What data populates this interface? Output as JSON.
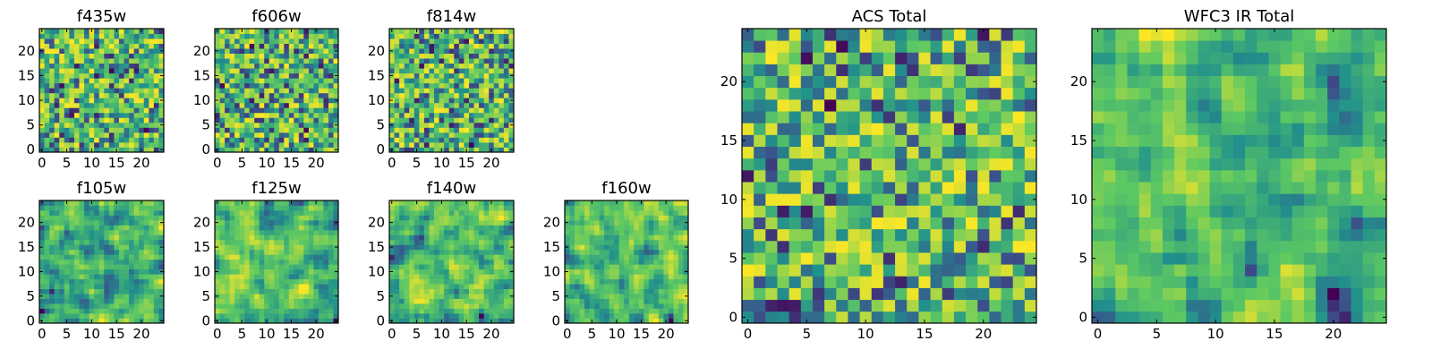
{
  "figure": {
    "colormap": "viridis",
    "colormap_stops": [
      "#440154",
      "#3b528b",
      "#21918c",
      "#5ec962",
      "#fde725"
    ],
    "axis_color": "#000000"
  },
  "chart_data": [
    {
      "type": "heatmap",
      "title": "f435w",
      "grid_size": 25,
      "xlim": [
        0,
        24
      ],
      "ylim": [
        0,
        24
      ],
      "xticks": [
        "0",
        "5",
        "10",
        "15",
        "20"
      ],
      "yticks": [
        "0",
        "5",
        "10",
        "15",
        "20"
      ],
      "seed": 11,
      "smooth": 0
    },
    {
      "type": "heatmap",
      "title": "f606w",
      "grid_size": 25,
      "xlim": [
        0,
        24
      ],
      "ylim": [
        0,
        24
      ],
      "xticks": [
        "0",
        "5",
        "10",
        "15",
        "20"
      ],
      "yticks": [
        "0",
        "5",
        "10",
        "15",
        "20"
      ],
      "seed": 23,
      "smooth": 0
    },
    {
      "type": "heatmap",
      "title": "f814w",
      "grid_size": 25,
      "xlim": [
        0,
        24
      ],
      "ylim": [
        0,
        24
      ],
      "xticks": [
        "0",
        "5",
        "10",
        "15",
        "20"
      ],
      "yticks": [
        "0",
        "5",
        "10",
        "15",
        "20"
      ],
      "seed": 37,
      "smooth": 0
    },
    {
      "type": "heatmap",
      "title": "f105w",
      "grid_size": 25,
      "xlim": [
        0,
        24
      ],
      "ylim": [
        0,
        24
      ],
      "xticks": [
        "0",
        "5",
        "10",
        "15",
        "20"
      ],
      "yticks": [
        "0",
        "5",
        "10",
        "15",
        "20"
      ],
      "seed": 41,
      "smooth": 1
    },
    {
      "type": "heatmap",
      "title": "f125w",
      "grid_size": 25,
      "xlim": [
        0,
        24
      ],
      "ylim": [
        0,
        24
      ],
      "xticks": [
        "0",
        "5",
        "10",
        "15",
        "20"
      ],
      "yticks": [
        "0",
        "5",
        "10",
        "15",
        "20"
      ],
      "seed": 53,
      "smooth": 1
    },
    {
      "type": "heatmap",
      "title": "f140w",
      "grid_size": 25,
      "xlim": [
        0,
        24
      ],
      "ylim": [
        0,
        24
      ],
      "xticks": [
        "0",
        "5",
        "10",
        "15",
        "20"
      ],
      "yticks": [
        "0",
        "5",
        "10",
        "15",
        "20"
      ],
      "seed": 67,
      "smooth": 1
    },
    {
      "type": "heatmap",
      "title": "f160w",
      "grid_size": 25,
      "xlim": [
        0,
        24
      ],
      "ylim": [
        0,
        24
      ],
      "xticks": [
        "0",
        "5",
        "10",
        "15",
        "20"
      ],
      "yticks": [
        "0",
        "5",
        "10",
        "15",
        "20"
      ],
      "seed": 79,
      "smooth": 1
    },
    {
      "type": "heatmap",
      "title": "ACS Total",
      "grid_size": 25,
      "xlim": [
        0,
        24
      ],
      "ylim": [
        0,
        24
      ],
      "xticks": [
        "0",
        "5",
        "10",
        "15",
        "20"
      ],
      "yticks": [
        "0",
        "5",
        "10",
        "15",
        "20"
      ],
      "seed": 97,
      "smooth": 0
    },
    {
      "type": "heatmap",
      "title": "WFC3 IR Total",
      "grid_size": 25,
      "xlim": [
        0,
        24
      ],
      "ylim": [
        0,
        24
      ],
      "xticks": [
        "0",
        "5",
        "10",
        "15",
        "20"
      ],
      "yticks": [
        "0",
        "5",
        "10",
        "15",
        "20"
      ],
      "seed": 131,
      "smooth": 1
    }
  ]
}
